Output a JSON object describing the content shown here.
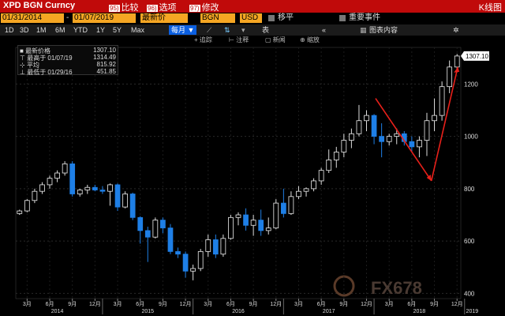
{
  "titlebar": {
    "ticker": "XPD BGN Curncy",
    "compare": {
      "num": "95)",
      "label": "比较"
    },
    "options": {
      "num": "96)",
      "label": "选项"
    },
    "edit": {
      "num": "97)",
      "label": "修改"
    },
    "right_title": "K线图"
  },
  "toolbar1": {
    "start_date": "01/31/2014",
    "end_date": "01/07/2019",
    "price_field": "最新价",
    "source": "BGN",
    "currency": "USD",
    "move_label": "移平",
    "events_label": "重要事件"
  },
  "toolbar2": {
    "periods": [
      "1D",
      "3D",
      "1M",
      "6M",
      "YTD",
      "1Y",
      "5Y",
      "Max"
    ],
    "frequency": "每月",
    "table_label": "表",
    "chart_content_label": "图表内容",
    "collapse_icon": "double-chevron-left-icon",
    "settings_icon": "gear-icon"
  },
  "toolbar3": {
    "track_label": "追踪",
    "annotate_label": "注释",
    "news_label": "新闻",
    "zoom_label": "缩放"
  },
  "legend": {
    "rows": [
      {
        "label": "最新价格",
        "value": "1307.10"
      },
      {
        "label": "最高于 01/07/19",
        "value": "1314.49"
      },
      {
        "label": "平均",
        "value": "815.92"
      },
      {
        "label": "最低于 01/29/16",
        "value": "451.85"
      }
    ]
  },
  "last_price_tag": "1307.10",
  "watermark": "FX678",
  "colors": {
    "up": "#ffffff",
    "down": "#1e7fe6",
    "arrow": "#e8201a",
    "title_bg": "#c00a0a",
    "accent": "#f5a623"
  },
  "chart_data": {
    "type": "candlestick",
    "frequency": "monthly",
    "ylim": [
      380,
      1340
    ],
    "y_ticks": [
      400,
      600,
      800,
      1000,
      1200
    ],
    "x_ticks": [
      {
        "label": "3月",
        "idx": 1
      },
      {
        "label": "6月",
        "idx": 4
      },
      {
        "label": "9月",
        "idx": 7
      },
      {
        "label": "12月",
        "idx": 10
      },
      {
        "label": "3月",
        "idx": 13
      },
      {
        "label": "6月",
        "idx": 16
      },
      {
        "label": "9月",
        "idx": 19
      },
      {
        "label": "12月",
        "idx": 22
      },
      {
        "label": "3月",
        "idx": 25
      },
      {
        "label": "6月",
        "idx": 28
      },
      {
        "label": "9月",
        "idx": 31
      },
      {
        "label": "12月",
        "idx": 34
      },
      {
        "label": "3月",
        "idx": 37
      },
      {
        "label": "6月",
        "idx": 40
      },
      {
        "label": "9月",
        "idx": 43
      },
      {
        "label": "12月",
        "idx": 46
      },
      {
        "label": "3月",
        "idx": 49
      },
      {
        "label": "6月",
        "idx": 52
      },
      {
        "label": "9月",
        "idx": 55
      },
      {
        "label": "12月",
        "idx": 58
      }
    ],
    "year_labels": [
      {
        "label": "2014",
        "idx": 5
      },
      {
        "label": "2015",
        "idx": 17
      },
      {
        "label": "2016",
        "idx": 29
      },
      {
        "label": "2017",
        "idx": 41
      },
      {
        "label": "2018",
        "idx": 53
      },
      {
        "label": "2019",
        "idx": 60
      }
    ],
    "candles": [
      {
        "o": 705,
        "h": 720,
        "l": 700,
        "c": 715
      },
      {
        "o": 715,
        "h": 760,
        "l": 710,
        "c": 755
      },
      {
        "o": 755,
        "h": 800,
        "l": 745,
        "c": 790
      },
      {
        "o": 790,
        "h": 825,
        "l": 780,
        "c": 815
      },
      {
        "o": 815,
        "h": 850,
        "l": 800,
        "c": 840
      },
      {
        "o": 840,
        "h": 870,
        "l": 825,
        "c": 860
      },
      {
        "o": 860,
        "h": 905,
        "l": 850,
        "c": 895
      },
      {
        "o": 895,
        "h": 905,
        "l": 770,
        "c": 780
      },
      {
        "o": 780,
        "h": 800,
        "l": 770,
        "c": 795
      },
      {
        "o": 795,
        "h": 815,
        "l": 780,
        "c": 805
      },
      {
        "o": 805,
        "h": 815,
        "l": 790,
        "c": 795
      },
      {
        "o": 795,
        "h": 810,
        "l": 780,
        "c": 790
      },
      {
        "o": 790,
        "h": 820,
        "l": 735,
        "c": 815
      },
      {
        "o": 815,
        "h": 820,
        "l": 715,
        "c": 730
      },
      {
        "o": 730,
        "h": 790,
        "l": 725,
        "c": 780
      },
      {
        "o": 780,
        "h": 785,
        "l": 680,
        "c": 690
      },
      {
        "o": 690,
        "h": 695,
        "l": 590,
        "c": 640
      },
      {
        "o": 640,
        "h": 655,
        "l": 520,
        "c": 615
      },
      {
        "o": 615,
        "h": 690,
        "l": 610,
        "c": 680
      },
      {
        "o": 680,
        "h": 690,
        "l": 630,
        "c": 650
      },
      {
        "o": 650,
        "h": 665,
        "l": 550,
        "c": 560
      },
      {
        "o": 560,
        "h": 575,
        "l": 535,
        "c": 550
      },
      {
        "o": 550,
        "h": 560,
        "l": 460,
        "c": 485
      },
      {
        "o": 485,
        "h": 510,
        "l": 450,
        "c": 495
      },
      {
        "o": 495,
        "h": 570,
        "l": 485,
        "c": 560
      },
      {
        "o": 560,
        "h": 625,
        "l": 540,
        "c": 605
      },
      {
        "o": 605,
        "h": 625,
        "l": 535,
        "c": 550
      },
      {
        "o": 550,
        "h": 625,
        "l": 540,
        "c": 610
      },
      {
        "o": 610,
        "h": 700,
        "l": 605,
        "c": 690
      },
      {
        "o": 690,
        "h": 710,
        "l": 660,
        "c": 700
      },
      {
        "o": 700,
        "h": 725,
        "l": 640,
        "c": 660
      },
      {
        "o": 660,
        "h": 700,
        "l": 620,
        "c": 680
      },
      {
        "o": 680,
        "h": 720,
        "l": 620,
        "c": 640
      },
      {
        "o": 640,
        "h": 690,
        "l": 625,
        "c": 650
      },
      {
        "o": 650,
        "h": 760,
        "l": 645,
        "c": 745
      },
      {
        "o": 745,
        "h": 800,
        "l": 690,
        "c": 705
      },
      {
        "o": 705,
        "h": 790,
        "l": 700,
        "c": 770
      },
      {
        "o": 770,
        "h": 810,
        "l": 760,
        "c": 790
      },
      {
        "o": 790,
        "h": 805,
        "l": 770,
        "c": 800
      },
      {
        "o": 800,
        "h": 840,
        "l": 790,
        "c": 830
      },
      {
        "o": 830,
        "h": 880,
        "l": 815,
        "c": 870
      },
      {
        "o": 870,
        "h": 950,
        "l": 860,
        "c": 910
      },
      {
        "o": 910,
        "h": 960,
        "l": 880,
        "c": 940
      },
      {
        "o": 940,
        "h": 1010,
        "l": 920,
        "c": 985
      },
      {
        "o": 985,
        "h": 1030,
        "l": 955,
        "c": 1010
      },
      {
        "o": 1010,
        "h": 1120,
        "l": 1000,
        "c": 1060
      },
      {
        "o": 1060,
        "h": 1100,
        "l": 1020,
        "c": 1080
      },
      {
        "o": 1080,
        "h": 1085,
        "l": 970,
        "c": 1000
      },
      {
        "o": 1000,
        "h": 1050,
        "l": 920,
        "c": 980
      },
      {
        "o": 980,
        "h": 1010,
        "l": 965,
        "c": 1000
      },
      {
        "o": 1000,
        "h": 1030,
        "l": 970,
        "c": 1010
      },
      {
        "o": 1010,
        "h": 1020,
        "l": 965,
        "c": 980
      },
      {
        "o": 980,
        "h": 1000,
        "l": 940,
        "c": 960
      },
      {
        "o": 960,
        "h": 1000,
        "l": 920,
        "c": 985
      },
      {
        "o": 985,
        "h": 1090,
        "l": 925,
        "c": 1060
      },
      {
        "o": 1060,
        "h": 1145,
        "l": 1020,
        "c": 1080
      },
      {
        "o": 1080,
        "h": 1210,
        "l": 1060,
        "c": 1190
      },
      {
        "o": 1190,
        "h": 1290,
        "l": 1165,
        "c": 1265
      },
      {
        "o": 1265,
        "h": 1315,
        "l": 1245,
        "c": 1307.1
      }
    ]
  }
}
